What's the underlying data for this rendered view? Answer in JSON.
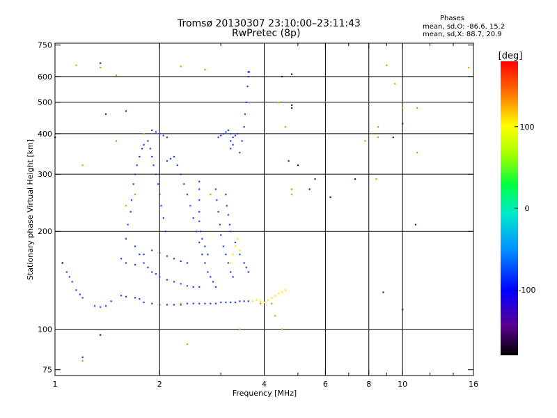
{
  "chart_data": {
    "type": "scatter",
    "title": "Tromsø 20130307 23:10:00–23:11:43",
    "subtitle": "RwPretec (8p)",
    "xlabel": "Frequency [MHz]",
    "ylabel": "Stationary phase Virtual Height [km]",
    "x_scale": "log",
    "y_scale": "log",
    "xlim": [
      1,
      16
    ],
    "ylim": [
      72,
      760
    ],
    "x_ticks": [
      1,
      2,
      4,
      6,
      8,
      10,
      16
    ],
    "x_tick_labels": [
      "1",
      "2",
      "4",
      "6",
      "8",
      "10",
      "16"
    ],
    "x_minor_ticks": [
      3,
      5,
      7,
      9,
      12,
      14
    ],
    "y_ticks": [
      75,
      100,
      200,
      300,
      400,
      500,
      600,
      750
    ],
    "y_tick_labels": [
      "75",
      "100",
      "200",
      "300",
      "400",
      "500",
      "600",
      "750"
    ],
    "grid": true,
    "grid_x": [
      2,
      4,
      6,
      8,
      10
    ],
    "grid_y": [
      100,
      200,
      300,
      400,
      500,
      600
    ],
    "phases_title": "Phases",
    "phases_lines": [
      "mean, sd,O: -86.6, 15.2",
      "mean, sd,X:  88.7, 20.9"
    ],
    "colorbar": {
      "label": "[deg]",
      "range": [
        -180,
        180
      ],
      "ticks": [
        100,
        0,
        -100
      ],
      "tick_labels": [
        "100",
        "0",
        "-100"
      ]
    },
    "series": [
      {
        "values_desc": "O-trace dots",
        "color": "#2040ff",
        "points": [
          [
            1.3,
            118
          ],
          [
            1.35,
            117
          ],
          [
            1.4,
            118
          ],
          [
            1.45,
            122
          ],
          [
            1.55,
            127
          ],
          [
            1.6,
            126
          ],
          [
            1.7,
            125
          ],
          [
            1.75,
            124
          ],
          [
            1.8,
            121
          ],
          [
            1.9,
            120
          ],
          [
            2.0,
            119
          ],
          [
            2.1,
            119
          ],
          [
            2.2,
            119
          ],
          [
            2.3,
            119
          ],
          [
            2.4,
            120
          ],
          [
            2.5,
            120
          ],
          [
            2.6,
            120
          ],
          [
            2.7,
            120
          ],
          [
            2.8,
            120
          ],
          [
            2.9,
            120
          ],
          [
            3.0,
            121
          ],
          [
            3.1,
            121
          ],
          [
            3.2,
            121
          ],
          [
            3.3,
            121
          ],
          [
            3.4,
            122
          ],
          [
            3.5,
            122
          ],
          [
            3.6,
            122
          ],
          [
            1.6,
            190
          ],
          [
            1.62,
            210
          ],
          [
            1.65,
            230
          ],
          [
            1.66,
            250
          ],
          [
            1.68,
            280
          ],
          [
            1.7,
            300
          ],
          [
            1.72,
            320
          ],
          [
            1.75,
            340
          ],
          [
            1.78,
            360
          ],
          [
            1.8,
            370
          ],
          [
            1.85,
            380
          ],
          [
            1.88,
            360
          ],
          [
            1.9,
            340
          ],
          [
            1.92,
            320
          ],
          [
            1.95,
            300
          ],
          [
            1.98,
            280
          ],
          [
            2.0,
            260
          ],
          [
            2.02,
            240
          ],
          [
            2.05,
            220
          ],
          [
            2.08,
            200
          ],
          [
            1.7,
            180
          ],
          [
            1.75,
            170
          ],
          [
            1.8,
            160
          ],
          [
            1.85,
            155
          ],
          [
            1.9,
            150
          ],
          [
            1.95,
            148
          ],
          [
            2.0,
            145
          ],
          [
            2.1,
            142
          ],
          [
            2.2,
            140
          ],
          [
            2.3,
            138
          ],
          [
            2.4,
            136
          ],
          [
            2.5,
            135
          ],
          [
            2.6,
            135
          ],
          [
            1.55,
            165
          ],
          [
            1.6,
            160
          ],
          [
            1.7,
            158
          ],
          [
            1.8,
            170
          ],
          [
            1.9,
            175
          ],
          [
            2.0,
            172
          ],
          [
            2.1,
            168
          ],
          [
            2.2,
            165
          ],
          [
            2.3,
            162
          ],
          [
            2.4,
            160
          ],
          [
            2.1,
            330
          ],
          [
            2.15,
            335
          ],
          [
            2.2,
            340
          ],
          [
            2.25,
            320
          ],
          [
            2.3,
            300
          ],
          [
            2.35,
            280
          ],
          [
            2.4,
            260
          ],
          [
            2.45,
            240
          ],
          [
            2.5,
            220
          ],
          [
            2.55,
            200
          ],
          [
            2.6,
            185
          ],
          [
            2.65,
            170
          ],
          [
            2.7,
            160
          ],
          [
            2.75,
            150
          ],
          [
            2.8,
            145
          ],
          [
            2.85,
            140
          ],
          [
            2.9,
            135
          ],
          [
            2.6,
            285
          ],
          [
            2.6,
            270
          ],
          [
            2.6,
            250
          ],
          [
            2.6,
            230
          ],
          [
            2.6,
            215
          ],
          [
            2.62,
            200
          ],
          [
            2.65,
            190
          ],
          [
            2.7,
            180
          ],
          [
            2.75,
            170
          ],
          [
            2.9,
            270
          ],
          [
            2.92,
            250
          ],
          [
            2.95,
            230
          ],
          [
            2.98,
            210
          ],
          [
            3.0,
            195
          ],
          [
            3.05,
            180
          ],
          [
            3.1,
            170
          ],
          [
            3.15,
            160
          ],
          [
            3.2,
            150
          ],
          [
            3.25,
            145
          ],
          [
            3.1,
            260
          ],
          [
            3.12,
            240
          ],
          [
            3.15,
            225
          ],
          [
            3.18,
            210
          ],
          [
            3.2,
            200
          ],
          [
            3.3,
            185
          ],
          [
            3.4,
            170
          ],
          [
            3.5,
            160
          ],
          [
            3.55,
            155
          ],
          [
            3.6,
            150
          ],
          [
            3.4,
            350
          ],
          [
            3.45,
            380
          ],
          [
            3.5,
            420
          ],
          [
            3.52,
            460
          ],
          [
            3.55,
            500
          ],
          [
            3.58,
            560
          ],
          [
            3.6,
            600
          ],
          [
            3.62,
            620
          ],
          [
            3.2,
            380
          ],
          [
            3.25,
            390
          ],
          [
            3.3,
            395
          ],
          [
            3.35,
            400
          ],
          [
            3.2,
            360
          ],
          [
            3.25,
            370
          ],
          [
            2.95,
            390
          ],
          [
            3.0,
            395
          ],
          [
            3.05,
            400
          ],
          [
            3.1,
            405
          ],
          [
            3.15,
            410
          ],
          [
            3.2,
            400
          ],
          [
            1.05,
            160
          ],
          [
            1.08,
            150
          ],
          [
            1.1,
            145
          ],
          [
            1.12,
            140
          ],
          [
            1.15,
            132
          ],
          [
            1.18,
            128
          ],
          [
            1.2,
            125
          ],
          [
            1.9,
            410
          ],
          [
            1.95,
            405
          ],
          [
            2.0,
            400
          ],
          [
            2.05,
            395
          ],
          [
            2.1,
            390
          ]
        ]
      },
      {
        "values_desc": "X-trace dots",
        "color": "#ffea00",
        "points": [
          [
            3.7,
            122
          ],
          [
            3.8,
            123
          ],
          [
            3.9,
            122
          ],
          [
            4.0,
            121
          ],
          [
            4.1,
            123
          ],
          [
            4.2,
            125
          ],
          [
            4.3,
            127
          ],
          [
            4.4,
            129
          ],
          [
            4.5,
            130
          ],
          [
            4.6,
            132
          ],
          [
            3.25,
            170
          ],
          [
            3.3,
            180
          ],
          [
            3.35,
            190
          ],
          [
            3.2,
            160
          ],
          [
            3.4,
            175
          ]
        ]
      },
      {
        "values_desc": "Scattered noise dots",
        "color": "#ff8c00",
        "points": [
          [
            1.15,
            650
          ],
          [
            1.35,
            640
          ],
          [
            1.5,
            605
          ],
          [
            2.3,
            645
          ],
          [
            2.7,
            630
          ],
          [
            1.2,
            80
          ],
          [
            2.4,
            90
          ],
          [
            4.4,
            500
          ],
          [
            4.6,
            420
          ],
          [
            4.8,
            270
          ],
          [
            4.8,
            260
          ],
          [
            8.4,
            290
          ],
          [
            9.0,
            650
          ],
          [
            10.0,
            480
          ],
          [
            11.0,
            480
          ],
          [
            11.0,
            350
          ],
          [
            15.5,
            640
          ],
          [
            9.5,
            570
          ],
          [
            8.5,
            390
          ],
          [
            8.5,
            420
          ],
          [
            1.6,
            240
          ],
          [
            1.7,
            260
          ],
          [
            1.5,
            380
          ],
          [
            1.2,
            320
          ],
          [
            2.3,
            120
          ],
          [
            3.9,
            120
          ],
          [
            4.2,
            120
          ],
          [
            4.3,
            110
          ],
          [
            4.5,
            100
          ],
          [
            1.8,
            400
          ],
          [
            2.8,
            260
          ],
          [
            3.4,
            100
          ],
          [
            7.8,
            380
          ]
        ]
      },
      {
        "values_desc": "Sparse dark dots",
        "color": "#202080",
        "points": [
          [
            1.35,
            660
          ],
          [
            1.0,
            390
          ],
          [
            1.4,
            460
          ],
          [
            1.6,
            470
          ],
          [
            3.6,
            620
          ],
          [
            4.8,
            610
          ],
          [
            4.8,
            480
          ],
          [
            5.0,
            320
          ],
          [
            5.6,
            290
          ],
          [
            6.2,
            255
          ],
          [
            7.3,
            290
          ],
          [
            9.4,
            390
          ],
          [
            10.0,
            430
          ],
          [
            10.9,
            210
          ],
          [
            10.0,
            115
          ],
          [
            1.2,
            82
          ],
          [
            1.35,
            96
          ],
          [
            4.5,
            600
          ],
          [
            4.8,
            490
          ],
          [
            1.05,
            160
          ],
          [
            4.7,
            330
          ],
          [
            5.4,
            270
          ],
          [
            8.8,
            130
          ]
        ]
      }
    ]
  }
}
